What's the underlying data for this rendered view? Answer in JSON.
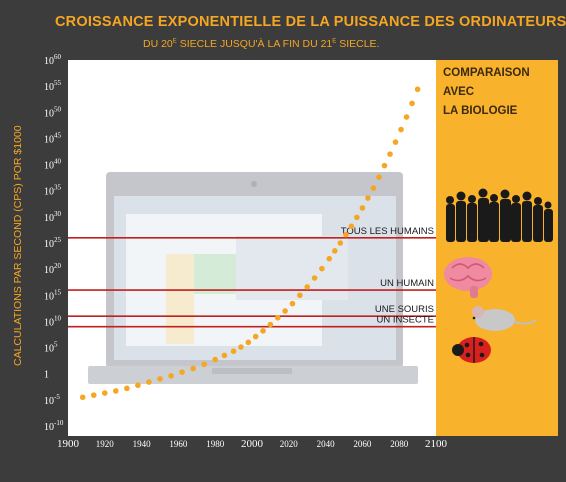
{
  "header": {
    "title": "CROISSANCE EXPONENTIELLE DE LA PUISSANCE DES ORDINATEURS",
    "subtitle_before": "DU 20",
    "subtitle_sup1": "E",
    "subtitle_mid": " SIECLE JUSQU'À LA FIN DU 21",
    "subtitle_sup2": "E",
    "subtitle_after": " SIECLE."
  },
  "panel": {
    "title_line1": "COMPARAISON AVEC",
    "title_line2": "LA BIOLOGIE"
  },
  "colors": {
    "background": "#3c3c3c",
    "accent": "#f5a623",
    "panel": "#f8b22b",
    "reference_line": "#c0201e",
    "plot_area": "#ffffff"
  },
  "icons": [
    "crowd-icon",
    "brain-icon",
    "mouse-icon",
    "ladybug-icon",
    "laptop-background-icon"
  ],
  "chart_data": {
    "type": "scatter",
    "title": "CROISSANCE EXPONENTIELLE DE LA PUISSANCE DES ORDINATEURS",
    "ylabel": "CALCULATIONS PAR SECOND (CPS) POR $1000",
    "xlabel": "",
    "xlim": [
      1900,
      2100
    ],
    "ylim_log10": [
      -10,
      60
    ],
    "y_scale": "log10",
    "x_ticks": [
      1900,
      1920,
      1940,
      1960,
      1980,
      2000,
      2020,
      2040,
      2060,
      2080,
      2100
    ],
    "y_ticks": [
      {
        "base": "10",
        "exp": "60",
        "value_log10": 60
      },
      {
        "base": "10",
        "exp": "55",
        "value_log10": 55
      },
      {
        "base": "10",
        "exp": "50",
        "value_log10": 50
      },
      {
        "base": "10",
        "exp": "45",
        "value_log10": 45
      },
      {
        "base": "10",
        "exp": "40",
        "value_log10": 40
      },
      {
        "base": "10",
        "exp": "35",
        "value_log10": 35
      },
      {
        "base": "10",
        "exp": "30",
        "value_log10": 30
      },
      {
        "base": "10",
        "exp": "25",
        "value_log10": 25
      },
      {
        "base": "10",
        "exp": "20",
        "value_log10": 20
      },
      {
        "base": "10",
        "exp": "15",
        "value_log10": 15
      },
      {
        "base": "10",
        "exp": "10",
        "value_log10": 10
      },
      {
        "base": "10",
        "exp": "5",
        "value_log10": 5
      },
      {
        "base": "1",
        "exp": "",
        "value_log10": 0
      },
      {
        "base": "10",
        "exp": "-5",
        "value_log10": -5
      },
      {
        "base": "10",
        "exp": "-10",
        "value_log10": -10
      }
    ],
    "grid": false,
    "series": [
      {
        "x": [
          1908,
          1914,
          1920,
          1926,
          1932,
          1938,
          1944,
          1950,
          1956,
          1962,
          1968,
          1974,
          1980,
          1985,
          1990,
          1994,
          1998,
          2002,
          2006,
          2010,
          2014,
          2018,
          2022,
          2026,
          2030,
          2034,
          2038,
          2042,
          2045,
          2048,
          2051,
          2054,
          2057,
          2060,
          2063,
          2066,
          2069,
          2072,
          2075,
          2078,
          2081,
          2084,
          2087,
          2090
        ],
        "y_log10": [
          -4.5,
          -4.1,
          -3.7,
          -3.3,
          -2.8,
          -2.2,
          -1.6,
          -1.0,
          -0.4,
          0.3,
          1.0,
          1.8,
          2.7,
          3.5,
          4.3,
          5.1,
          6.0,
          7.1,
          8.2,
          9.4,
          10.7,
          12.0,
          13.4,
          15.0,
          16.6,
          18.3,
          20.1,
          22.0,
          23.5,
          25.0,
          26.6,
          28.2,
          29.9,
          31.7,
          33.6,
          35.5,
          37.6,
          39.8,
          42.0,
          44.3,
          46.7,
          49.1,
          51.7,
          54.4
        ]
      }
    ],
    "reference_lines": [
      {
        "label": "TOUS LES HUMAINS",
        "y_log10": 26
      },
      {
        "label": "UN HUMAIN",
        "y_log10": 16
      },
      {
        "label": "UNE SOURIS",
        "y_log10": 11
      },
      {
        "label": "UN INSECTE",
        "y_log10": 9
      }
    ]
  }
}
